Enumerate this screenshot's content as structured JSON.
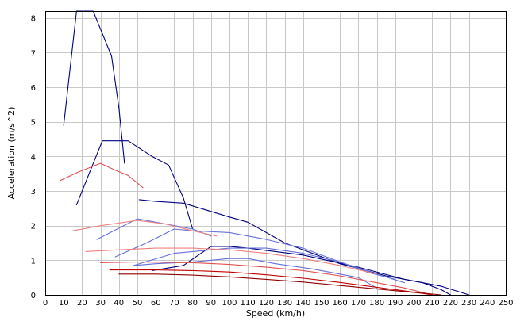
{
  "chart_data": {
    "type": "line",
    "title": "",
    "xlabel": "Speed (km/h)",
    "ylabel": "Acceleration (m/s^2)",
    "xlim": [
      0,
      250
    ],
    "ylim": [
      0,
      8.2
    ],
    "x_ticks": [
      0,
      10,
      20,
      30,
      40,
      50,
      60,
      70,
      80,
      90,
      100,
      110,
      120,
      130,
      140,
      150,
      160,
      170,
      180,
      190,
      200,
      210,
      220,
      230,
      240,
      250
    ],
    "y_ticks": [
      0,
      1,
      2,
      3,
      4,
      5,
      6,
      7,
      8
    ],
    "x_ticks_labels": [
      "0",
      "10",
      "20",
      "30",
      "40",
      "50",
      "60",
      "70",
      "80",
      "90",
      "100",
      "110",
      "120",
      "130",
      "140",
      "150",
      "160",
      "170",
      "180",
      "190",
      "200",
      "210",
      "220",
      "230",
      "240",
      "250"
    ],
    "y_ticks_labels": [
      "0",
      "1",
      "2",
      "3",
      "4",
      "5",
      "6",
      "7",
      "8"
    ],
    "grid": true,
    "legend": "none",
    "series": [
      {
        "color": "#000080",
        "points": [
          [
            10,
            4.9
          ],
          [
            17,
            8.2
          ],
          [
            26,
            8.2
          ],
          [
            36,
            6.9
          ],
          [
            40,
            5.4
          ],
          [
            43,
            3.8
          ]
        ]
      },
      {
        "color": "#000080",
        "points": [
          [
            17,
            2.6
          ],
          [
            31,
            4.45
          ],
          [
            45,
            4.45
          ],
          [
            58,
            4.0
          ],
          [
            67,
            3.75
          ],
          [
            75,
            2.8
          ],
          [
            80,
            1.9
          ]
        ]
      },
      {
        "color": "#000080",
        "points": [
          [
            51,
            2.75
          ],
          [
            60,
            2.7
          ],
          [
            75,
            2.65
          ],
          [
            100,
            2.25
          ],
          [
            110,
            2.1
          ],
          [
            130,
            1.5
          ],
          [
            160,
            0.9
          ],
          [
            185,
            0.55
          ],
          [
            205,
            0.35
          ],
          [
            215,
            0.15
          ],
          [
            220,
            0.0
          ]
        ]
      },
      {
        "color": "#000080",
        "points": [
          [
            58,
            0.7
          ],
          [
            75,
            0.85
          ],
          [
            90,
            1.4
          ],
          [
            100,
            1.4
          ],
          [
            110,
            1.35
          ],
          [
            140,
            1.15
          ],
          [
            170,
            0.8
          ],
          [
            195,
            0.45
          ],
          [
            205,
            0.35
          ],
          [
            215,
            0.25
          ],
          [
            230,
            0.0
          ]
        ]
      },
      {
        "color": "#6670D8",
        "points": [
          [
            28,
            1.6
          ],
          [
            50,
            2.2
          ],
          [
            60,
            2.1
          ],
          [
            80,
            1.9
          ],
          [
            90,
            1.7
          ]
        ]
      },
      {
        "color": "#6670D8",
        "points": [
          [
            38,
            1.1
          ],
          [
            55,
            1.5
          ],
          [
            70,
            1.9
          ],
          [
            80,
            1.85
          ],
          [
            100,
            1.8
          ],
          [
            120,
            1.6
          ],
          [
            140,
            1.35
          ],
          [
            160,
            0.95
          ],
          [
            180,
            0.6
          ],
          [
            195,
            0.35
          ]
        ]
      },
      {
        "color": "#6670D8",
        "points": [
          [
            48,
            0.85
          ],
          [
            70,
            1.2
          ],
          [
            100,
            1.35
          ],
          [
            120,
            1.35
          ],
          [
            140,
            1.2
          ],
          [
            160,
            0.95
          ],
          [
            175,
            0.65
          ],
          [
            190,
            0.45
          ]
        ]
      },
      {
        "color": "#6670D8",
        "points": [
          [
            48,
            0.85
          ],
          [
            60,
            0.9
          ],
          [
            80,
            0.95
          ],
          [
            100,
            1.05
          ],
          [
            110,
            1.05
          ],
          [
            125,
            0.9
          ],
          [
            145,
            0.75
          ],
          [
            170,
            0.5
          ],
          [
            180,
            0.2
          ]
        ]
      },
      {
        "color": "#E05050",
        "points": [
          [
            8,
            3.3
          ],
          [
            18,
            3.55
          ],
          [
            30,
            3.8
          ],
          [
            38,
            3.6
          ],
          [
            45,
            3.45
          ],
          [
            53,
            3.1
          ]
        ]
      },
      {
        "color": "#F08080",
        "points": [
          [
            15,
            1.85
          ],
          [
            30,
            2.0
          ],
          [
            50,
            2.15
          ],
          [
            65,
            2.05
          ],
          [
            80,
            1.85
          ],
          [
            93,
            1.7
          ]
        ]
      },
      {
        "color": "#F08080",
        "points": [
          [
            22,
            1.25
          ],
          [
            40,
            1.3
          ],
          [
            60,
            1.35
          ],
          [
            80,
            1.35
          ],
          [
            100,
            1.3
          ],
          [
            120,
            1.2
          ],
          [
            140,
            1.05
          ],
          [
            160,
            0.85
          ],
          [
            180,
            0.6
          ]
        ]
      },
      {
        "color": "#E05050",
        "points": [
          [
            30,
            0.93
          ],
          [
            50,
            0.95
          ],
          [
            80,
            0.93
          ],
          [
            100,
            0.88
          ],
          [
            120,
            0.8
          ],
          [
            140,
            0.7
          ],
          [
            160,
            0.55
          ],
          [
            180,
            0.35
          ],
          [
            195,
            0.2
          ],
          [
            210,
            0.0
          ]
        ]
      },
      {
        "color": "#C00000",
        "points": [
          [
            35,
            0.72
          ],
          [
            60,
            0.72
          ],
          [
            80,
            0.7
          ],
          [
            100,
            0.66
          ],
          [
            120,
            0.58
          ],
          [
            140,
            0.48
          ],
          [
            160,
            0.36
          ],
          [
            180,
            0.22
          ],
          [
            200,
            0.08
          ],
          [
            210,
            0.0
          ]
        ]
      },
      {
        "color": "#900000",
        "points": [
          [
            40,
            0.6
          ],
          [
            60,
            0.6
          ],
          [
            80,
            0.57
          ],
          [
            100,
            0.52
          ],
          [
            120,
            0.45
          ],
          [
            140,
            0.37
          ],
          [
            160,
            0.27
          ],
          [
            180,
            0.17
          ],
          [
            200,
            0.07
          ],
          [
            215,
            0.0
          ]
        ]
      }
    ]
  }
}
